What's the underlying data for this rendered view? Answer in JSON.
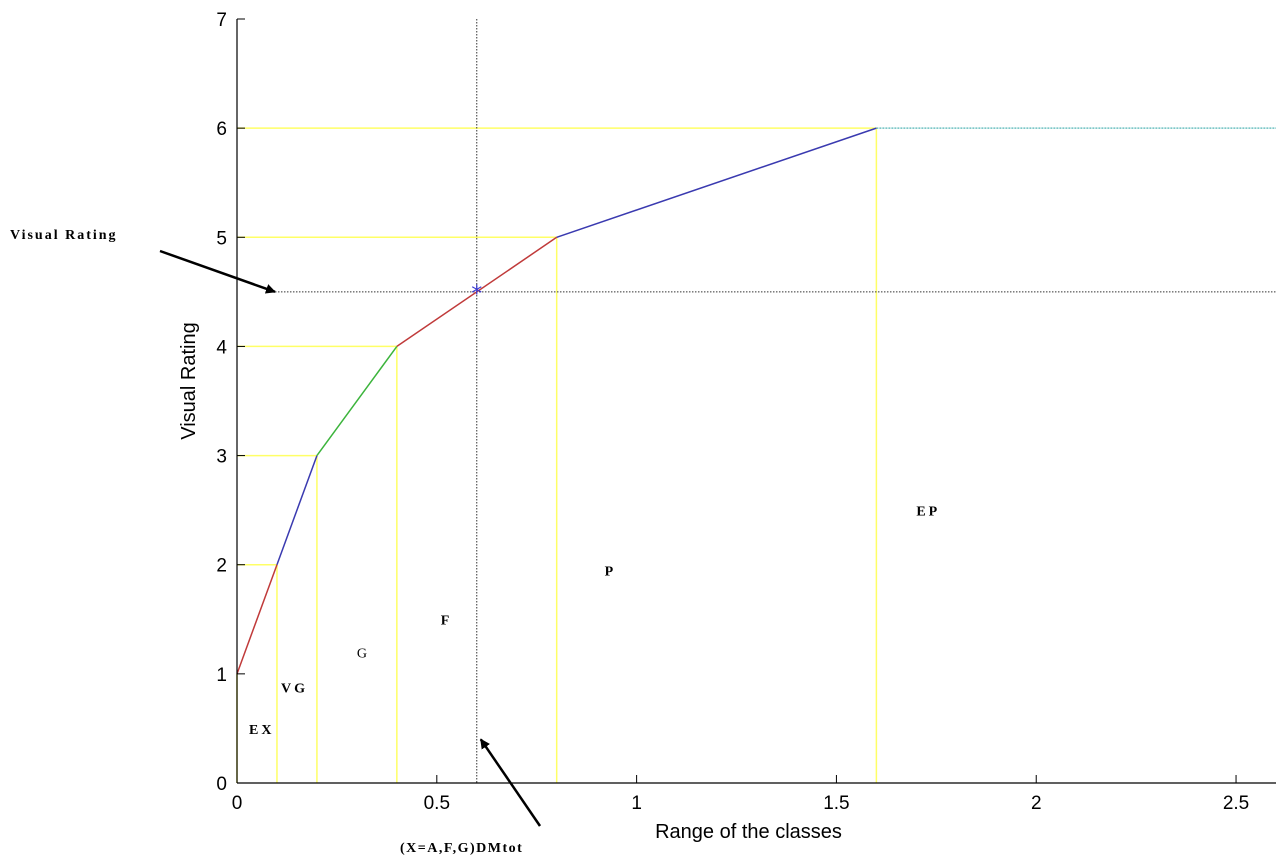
{
  "chart_data": {
    "type": "line",
    "title": "",
    "xlabel": "Range of the classes",
    "ylabel": "Visual Rating",
    "xlim": [
      0,
      2.6
    ],
    "ylim": [
      0,
      7
    ],
    "xticks": [
      0,
      0.5,
      1,
      1.5,
      2,
      2.5
    ],
    "xtick_labels": [
      "0",
      "0.5",
      "1",
      "1.5",
      "2",
      "2.5"
    ],
    "yticks": [
      0,
      1,
      2,
      3,
      4,
      5,
      6,
      7
    ],
    "ytick_labels": [
      "0",
      "1",
      "2",
      "3",
      "4",
      "5",
      "6",
      "7"
    ],
    "grid": false,
    "segments": [
      {
        "x": [
          0,
          0.1
        ],
        "y": [
          1,
          2
        ],
        "color": "#c03a3a"
      },
      {
        "x": [
          0.1,
          0.2
        ],
        "y": [
          2,
          3
        ],
        "color": "#3a3ab0"
      },
      {
        "x": [
          0.2,
          0.4
        ],
        "y": [
          3,
          4
        ],
        "color": "#3cb43c"
      },
      {
        "x": [
          0.4,
          0.8
        ],
        "y": [
          4,
          5
        ],
        "color": "#c03a3a"
      },
      {
        "x": [
          0.8,
          1.6
        ],
        "y": [
          5,
          6
        ],
        "color": "#3a3ab0"
      },
      {
        "x": [
          1.6,
          2.6
        ],
        "y": [
          6,
          6
        ],
        "color": "#6cc0c0"
      }
    ],
    "class_boundaries": [
      {
        "x": 0.1,
        "y": 2
      },
      {
        "x": 0.2,
        "y": 3
      },
      {
        "x": 0.4,
        "y": 4
      },
      {
        "x": 0.8,
        "y": 5
      },
      {
        "x": 1.6,
        "y": 6
      }
    ],
    "boundary_color": "#ffff66",
    "marker": {
      "x": 0.6,
      "y": 4.5,
      "symbol": "*",
      "color": "#3a3ad0"
    },
    "regions": [
      {
        "label": "EX",
        "x": 0.03,
        "y": 0.45,
        "bold": true
      },
      {
        "label": "VG",
        "x": 0.11,
        "y": 0.83,
        "bold": true
      },
      {
        "label": "G",
        "x": 0.3,
        "y": 1.15,
        "bold": false
      },
      {
        "label": "F",
        "x": 0.51,
        "y": 1.45,
        "bold": true
      },
      {
        "label": "P",
        "x": 0.92,
        "y": 1.9,
        "bold": true
      },
      {
        "label": "EP",
        "x": 1.7,
        "y": 2.45,
        "bold": true
      }
    ],
    "annotations": [
      {
        "text": "Visual Rating",
        "points_to": {
          "x": 0.08,
          "y": 4.5
        }
      },
      {
        "text": "(X=A,F,G)DMtot",
        "points_to": {
          "x": 0.61,
          "y": 0.4
        }
      }
    ]
  }
}
